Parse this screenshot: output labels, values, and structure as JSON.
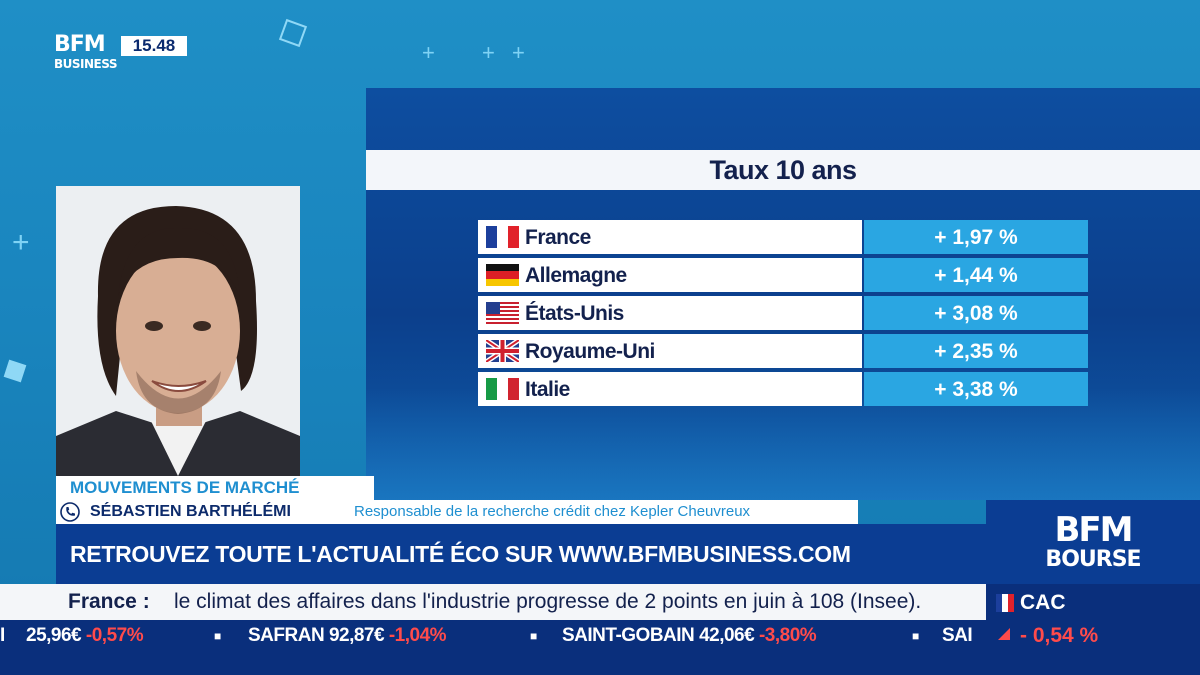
{
  "channel": {
    "logo_line1": "BFM",
    "logo_line2": "BUSINESS",
    "clock": "15.48"
  },
  "graphic": {
    "title": "Taux 10 ans",
    "rows": [
      {
        "country": "France",
        "value": "+ 1,97 %",
        "flag": "fr-flag"
      },
      {
        "country": "Allemagne",
        "value": "+ 1,44 %",
        "flag": "de-flag"
      },
      {
        "country": "États-Unis",
        "value": "+ 3,08 %",
        "flag": "us-flag"
      },
      {
        "country": "Royaume-Uni",
        "value": "+ 2,35 %",
        "flag": "uk-flag"
      },
      {
        "country": "Italie",
        "value": "+ 3,38 %",
        "flag": "it-flag"
      }
    ]
  },
  "lower_third": {
    "segment": "MOUVEMENTS DE MARCHÉ",
    "guest_name": "SÉBASTIEN BARTHÉLÉMI",
    "guest_role": "Responsable de la recherche crédit chez Kepler Cheuvreux",
    "promo": "RETROUVEZ TOUTE L'ACTUALITÉ ÉCO SUR WWW.BFMBUSINESS.COM"
  },
  "news": {
    "label": "France :",
    "text": "le climat des affaires dans l'industrie progresse de 2 points en juin à 108 (Insee)."
  },
  "ticker": [
    {
      "name": "",
      "price": "25,96€",
      "change": "-0,57%"
    },
    {
      "name": "SAFRAN",
      "price": "92,87€",
      "change": "-1,04%"
    },
    {
      "name": "SAINT-GOBAIN",
      "price": "42,06€",
      "change": "-3,80%"
    },
    {
      "name": "SAI",
      "price": "",
      "change": ""
    }
  ],
  "bourse": {
    "line1": "BFM",
    "line2": "BOURSE"
  },
  "index": {
    "name": "CAC",
    "change": "- 0,54 %"
  },
  "colors": {
    "accent": "#2aa6e2",
    "navy": "#0b3d93",
    "negative": "#ff4b4b"
  }
}
